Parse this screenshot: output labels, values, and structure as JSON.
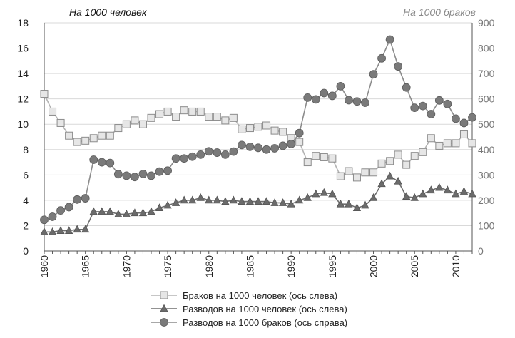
{
  "chart_data": {
    "type": "line",
    "left_axis_caption": "На 1000 человек",
    "right_axis_caption": "На 1000 браков",
    "x": [
      1960,
      1961,
      1962,
      1963,
      1964,
      1965,
      1966,
      1967,
      1968,
      1969,
      1970,
      1971,
      1972,
      1973,
      1974,
      1975,
      1976,
      1977,
      1978,
      1979,
      1980,
      1981,
      1982,
      1983,
      1984,
      1985,
      1986,
      1987,
      1988,
      1989,
      1990,
      1991,
      1992,
      1993,
      1994,
      1995,
      1996,
      1997,
      1998,
      1999,
      2000,
      2001,
      2002,
      2003,
      2004,
      2005,
      2006,
      2007,
      2008,
      2009,
      2010,
      2011,
      2012
    ],
    "x_ticks": [
      "1960",
      "1965",
      "1970",
      "1975",
      "1980",
      "1985",
      "1990",
      "1995",
      "2000",
      "2005",
      "2010"
    ],
    "xlim": [
      1960,
      2012
    ],
    "ylim_left": [
      0,
      18
    ],
    "y_ticks_left": [
      "0",
      "2",
      "4",
      "6",
      "8",
      "10",
      "12",
      "14",
      "16",
      "18"
    ],
    "ylim_right": [
      0,
      900
    ],
    "y_ticks_right": [
      "0",
      "100",
      "200",
      "300",
      "400",
      "500",
      "600",
      "700",
      "800",
      "900"
    ],
    "series": [
      {
        "name": "Браков на 1000 человек (ось слева)",
        "axis": "left",
        "marker": "square",
        "values": [
          12.4,
          11.0,
          10.1,
          9.1,
          8.6,
          8.7,
          8.9,
          9.1,
          9.1,
          9.7,
          10.0,
          10.3,
          10.0,
          10.5,
          10.8,
          11.0,
          10.6,
          11.1,
          11.0,
          11.0,
          10.6,
          10.6,
          10.3,
          10.5,
          9.6,
          9.7,
          9.8,
          9.9,
          9.5,
          9.4,
          8.9,
          8.6,
          7.0,
          7.5,
          7.4,
          7.3,
          5.9,
          6.3,
          5.8,
          6.2,
          6.2,
          6.9,
          7.1,
          7.6,
          6.8,
          7.5,
          7.8,
          8.9,
          8.3,
          8.5,
          8.5,
          9.2,
          8.5
        ]
      },
      {
        "name": "Разводов на 1000 человек (ось слева)",
        "axis": "left",
        "marker": "triangle",
        "values": [
          1.5,
          1.5,
          1.6,
          1.6,
          1.7,
          1.7,
          3.1,
          3.1,
          3.1,
          2.9,
          2.9,
          3.0,
          3.0,
          3.1,
          3.4,
          3.6,
          3.8,
          4.0,
          4.0,
          4.2,
          4.0,
          4.0,
          3.9,
          4.0,
          3.9,
          3.9,
          3.9,
          3.9,
          3.8,
          3.8,
          3.7,
          4.0,
          4.2,
          4.5,
          4.6,
          4.5,
          3.7,
          3.7,
          3.4,
          3.6,
          4.2,
          5.3,
          5.9,
          5.5,
          4.3,
          4.2,
          4.5,
          4.8,
          5.0,
          4.8,
          4.5,
          4.7,
          4.5
        ]
      },
      {
        "name": "Разводов на 1000 браков (ось справа)",
        "axis": "right",
        "marker": "circle",
        "values": [
          123,
          135,
          160,
          173,
          203,
          208,
          360,
          350,
          347,
          303,
          297,
          292,
          304,
          297,
          313,
          317,
          365,
          365,
          372,
          380,
          393,
          388,
          380,
          392,
          418,
          411,
          407,
          400,
          405,
          415,
          422,
          465,
          605,
          598,
          623,
          612,
          650,
          595,
          590,
          585,
          697,
          760,
          834,
          728,
          645,
          565,
          572,
          540,
          594,
          580,
          522,
          505,
          527
        ]
      }
    ]
  }
}
